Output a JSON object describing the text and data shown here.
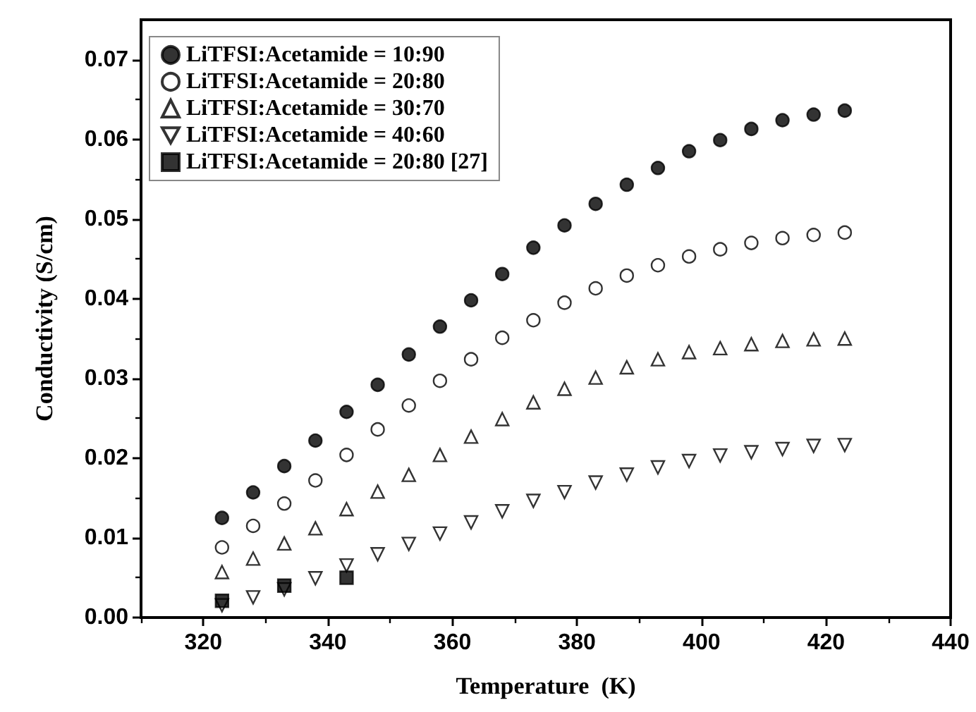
{
  "chart_data": {
    "type": "scatter",
    "xlabel": "Temperature  (K)",
    "ylabel": "Conductivity (S/cm)",
    "x": [
      323,
      328,
      333,
      338,
      343,
      348,
      353,
      358,
      363,
      368,
      373,
      378,
      383,
      388,
      393,
      398,
      403,
      408,
      413,
      418,
      423
    ],
    "series": [
      {
        "name": "LiTFSI:Acetamide = 10:90",
        "color": "#000000",
        "marker": "circle",
        "values": [
          0.0125,
          0.0157,
          0.019,
          0.0222,
          0.0258,
          0.0292,
          0.033,
          0.0365,
          0.0398,
          0.0431,
          0.0464,
          0.0492,
          0.0519,
          0.0543,
          0.0564,
          0.0585,
          0.0599,
          0.0613,
          0.0624,
          0.0631,
          0.0636
        ]
      },
      {
        "name": "LiTFSI:Acetamide = 20:80",
        "color": "#000000",
        "marker": "circle-open",
        "values": [
          0.0088,
          0.0115,
          0.0143,
          0.0172,
          0.0204,
          0.0236,
          0.0266,
          0.0297,
          0.0324,
          0.0351,
          0.0373,
          0.0395,
          0.0413,
          0.0429,
          0.0442,
          0.0453,
          0.0462,
          0.047,
          0.0476,
          0.048,
          0.0483
        ]
      },
      {
        "name": "LiTFSI:Acetamide = 30:70",
        "color": "#000000",
        "marker": "triangle-open",
        "values": [
          0.0057,
          0.0074,
          0.0093,
          0.0112,
          0.0136,
          0.0158,
          0.0179,
          0.0204,
          0.0227,
          0.0249,
          0.027,
          0.0287,
          0.0301,
          0.0314,
          0.0324,
          0.0333,
          0.0338,
          0.0343,
          0.0347,
          0.0349,
          0.035
        ]
      },
      {
        "name": "LiTFSI:Acetamide = 40:60",
        "color": "#000000",
        "marker": "triangle-down-open",
        "values": [
          0.0018,
          0.0028,
          0.0038,
          0.0052,
          0.0068,
          0.0082,
          0.0095,
          0.0108,
          0.0122,
          0.0136,
          0.0149,
          0.016,
          0.0172,
          0.0182,
          0.0191,
          0.0199,
          0.0206,
          0.021,
          0.0214,
          0.0218,
          0.0219
        ]
      },
      {
        "name": "LiTFSI:Acetamide = 20:80 [27]",
        "color": "#000000",
        "marker": "square",
        "x": [
          323,
          333,
          343
        ],
        "values": [
          0.0021,
          0.004,
          0.005
        ]
      }
    ],
    "xlim": [
      310,
      440
    ],
    "xticks": [
      320,
      340,
      360,
      380,
      400,
      420,
      440
    ],
    "ylim": [
      0,
      0.075
    ],
    "yticks": [
      {
        "value": 0,
        "label": "0.00"
      },
      {
        "value": 0.01,
        "label": "0.01"
      },
      {
        "value": 0.02,
        "label": "0.02"
      },
      {
        "value": 0.03,
        "label": "0.03"
      },
      {
        "value": 0.04,
        "label": "0.04"
      },
      {
        "value": 0.05,
        "label": "0.05"
      },
      {
        "value": 0.06,
        "label": "0.06"
      },
      {
        "value": 0.07,
        "label": "0.07"
      }
    ],
    "grid": false,
    "legend": "top left"
  }
}
